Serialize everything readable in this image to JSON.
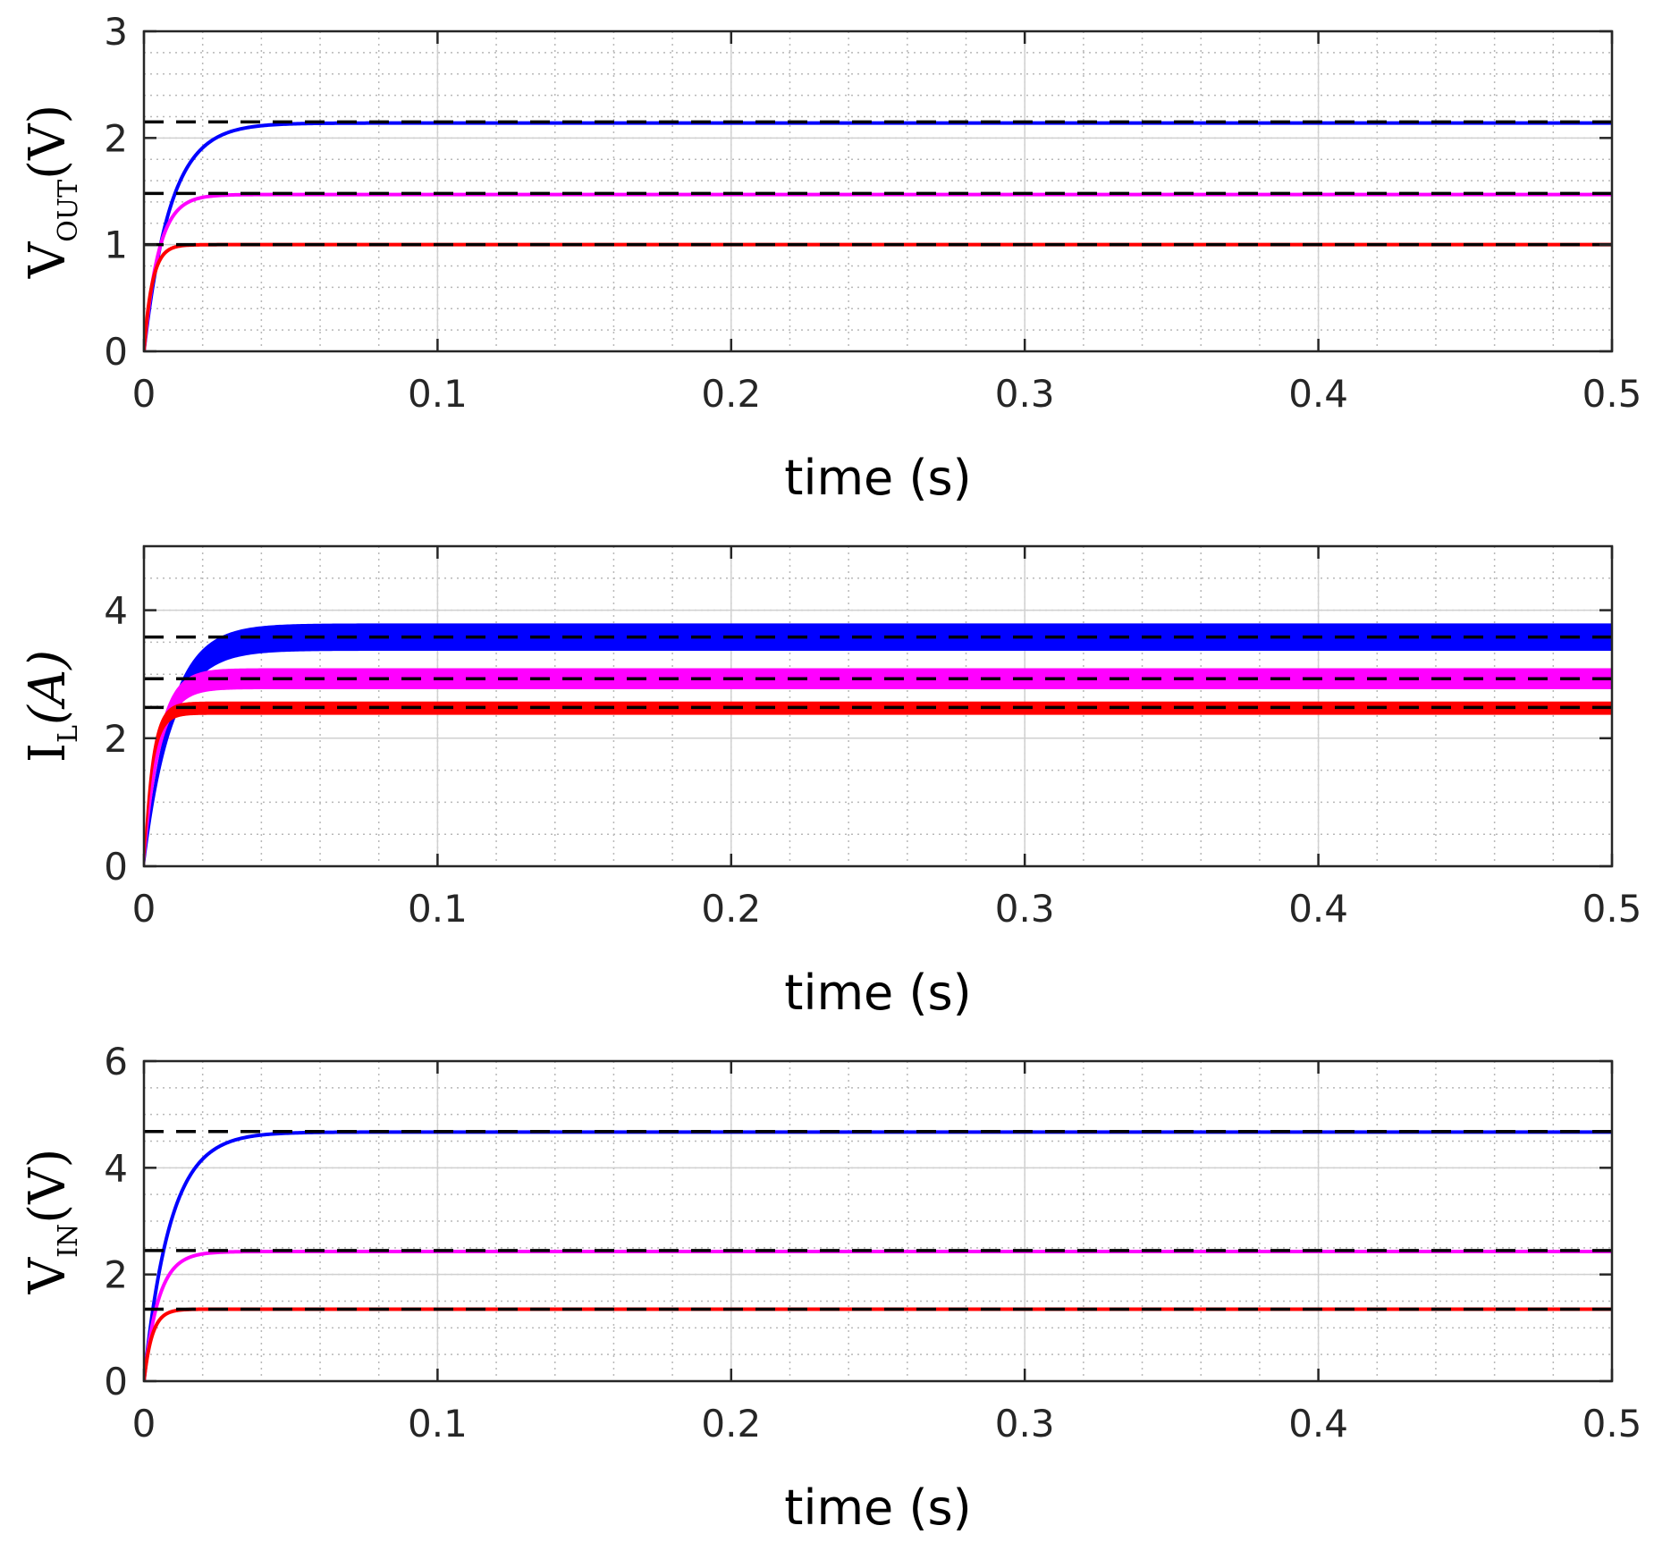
{
  "colors": {
    "blue": "#0000ff",
    "magenta": "#ff00ff",
    "red": "#ff0000",
    "reference": "#000000",
    "grid_major": "#d0d0d0",
    "grid_minor": "#b8b8b8",
    "axis": "#262626"
  },
  "chart_data": [
    {
      "type": "line",
      "title": "",
      "xlabel": "time (s)",
      "ylabel": {
        "main": "V",
        "sub": "OUT",
        "unit": "(V)",
        "unit_italic": false
      },
      "xlim": [
        0,
        0.5
      ],
      "ylim": [
        0,
        3
      ],
      "xticks": [
        0,
        0.1,
        0.2,
        0.3,
        0.4,
        0.5
      ],
      "xtick_labels": [
        "0",
        "0.1",
        "0.2",
        "0.3",
        "0.4",
        "0.5"
      ],
      "yticks": [
        0,
        1,
        2,
        3
      ],
      "ytick_labels": [
        "0",
        "1",
        "2",
        "3"
      ],
      "grid": true,
      "series": [
        {
          "name": "blue",
          "color": "blue",
          "final": 2.14,
          "tau": 0.009,
          "ripple": 0.01,
          "start": 0
        },
        {
          "name": "magenta",
          "color": "magenta",
          "final": 1.47,
          "tau": 0.005,
          "ripple": 0.01,
          "start": 0
        },
        {
          "name": "red",
          "color": "red",
          "final": 1.0,
          "tau": 0.0028,
          "ripple": 0.01,
          "start": 0
        }
      ],
      "references": [
        2.15,
        1.48,
        1.0
      ]
    },
    {
      "type": "line",
      "title": "",
      "xlabel": "time (s)",
      "ylabel": {
        "main": "I",
        "sub": "L",
        "unit": "(A)",
        "unit_italic": true
      },
      "xlim": [
        0,
        0.5
      ],
      "ylim": [
        0,
        5
      ],
      "xticks": [
        0,
        0.1,
        0.2,
        0.3,
        0.4,
        0.5
      ],
      "xtick_labels": [
        "0",
        "0.1",
        "0.2",
        "0.3",
        "0.4",
        "0.5"
      ],
      "yticks": [
        0,
        2,
        4
      ],
      "ytick_labels": [
        "0",
        "2",
        "4"
      ],
      "grid": true,
      "series": [
        {
          "name": "blue",
          "color": "blue",
          "final": 3.58,
          "tau": 0.009,
          "ripple": 0.4,
          "start": 0
        },
        {
          "name": "magenta",
          "color": "magenta",
          "final": 2.93,
          "tau": 0.005,
          "ripple": 0.3,
          "start": 0
        },
        {
          "name": "red",
          "color": "red",
          "final": 2.47,
          "tau": 0.0028,
          "ripple": 0.18,
          "start": 0
        }
      ],
      "references": [
        3.58,
        2.93,
        2.48
      ]
    },
    {
      "type": "line",
      "title": "",
      "xlabel": "time (s)",
      "ylabel": {
        "main": "V",
        "sub": "IN",
        "unit": "(V)",
        "unit_italic": false
      },
      "xlim": [
        0,
        0.5
      ],
      "ylim": [
        0,
        6
      ],
      "xticks": [
        0,
        0.1,
        0.2,
        0.3,
        0.4,
        0.5
      ],
      "xtick_labels": [
        "0",
        "0.1",
        "0.2",
        "0.3",
        "0.4",
        "0.5"
      ],
      "yticks": [
        0,
        2,
        4,
        6
      ],
      "ytick_labels": [
        "0",
        "2",
        "4",
        "6"
      ],
      "grid": true,
      "series": [
        {
          "name": "blue",
          "color": "blue",
          "final": 4.67,
          "tau": 0.009,
          "ripple": 0.02,
          "start": 0
        },
        {
          "name": "magenta",
          "color": "magenta",
          "final": 2.43,
          "tau": 0.005,
          "ripple": 0.02,
          "start": 0
        },
        {
          "name": "red",
          "color": "red",
          "final": 1.35,
          "tau": 0.0028,
          "ripple": 0.02,
          "start": 0
        }
      ],
      "references": [
        4.68,
        2.45,
        1.35
      ]
    }
  ]
}
